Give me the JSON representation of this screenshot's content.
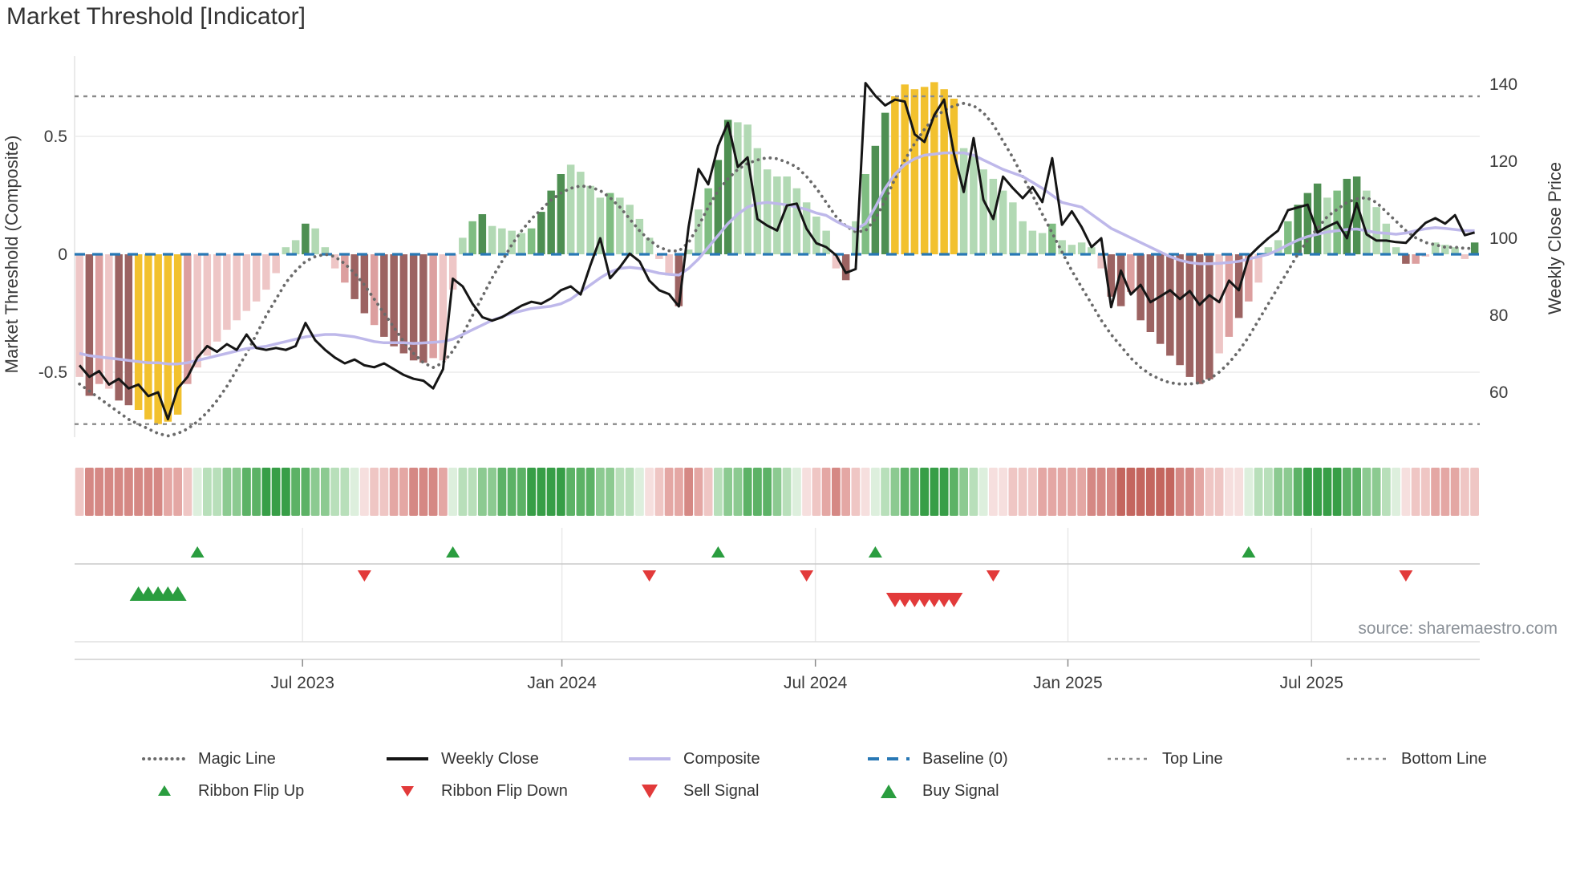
{
  "title": "Market Threshold [Indicator]",
  "source_text": "source: sharemaestro.com",
  "left_axis": {
    "title": "Market Threshold (Composite)",
    "ticks": [
      {
        "v": 0.5,
        "label": "0.5"
      },
      {
        "v": 0,
        "label": "0"
      },
      {
        "v": -0.5,
        "label": "-0.5"
      }
    ],
    "range": [
      -0.78,
      0.84
    ]
  },
  "right_axis": {
    "title": "Weekly Close Price",
    "ticks": [
      {
        "v": 140,
        "label": "140"
      },
      {
        "v": 120,
        "label": "120"
      },
      {
        "v": 100,
        "label": "100"
      },
      {
        "v": 80,
        "label": "80"
      },
      {
        "v": 60,
        "label": "60"
      }
    ],
    "range": [
      48,
      147
    ]
  },
  "x_axis": {
    "tick_labels": [
      "Jul 2023",
      "Jan 2024",
      "Jul 2024",
      "Jan 2025",
      "Jul 2025"
    ],
    "tick_weeks": [
      22.7,
      49.1,
      74.9,
      100.6,
      125.4
    ]
  },
  "legend": {
    "row1": [
      {
        "label": "Magic Line"
      },
      {
        "label": "Weekly Close"
      },
      {
        "label": "Composite"
      },
      {
        "label": "Baseline (0)"
      },
      {
        "label": "Top Line"
      },
      {
        "label": "Bottom Line"
      }
    ],
    "row2": [
      {
        "label": "Ribbon Flip Up"
      },
      {
        "label": "Ribbon Flip Down"
      },
      {
        "label": "Sell Signal"
      },
      {
        "label": "Buy Signal"
      }
    ]
  },
  "colors": {
    "bar_palette": {
      "P": "#eec6c6",
      "M": "#dc9f9f",
      "D": "#9c6362",
      "Y": "#f2c12e",
      "LG": "#b2d9b4",
      "MG": "#7fbd82",
      "DG": "#4e8f52"
    },
    "ribbon_green": [
      "#ddefdd",
      "#b8dfba",
      "#8cca91",
      "#5cb266",
      "#379e47"
    ],
    "ribbon_red": [
      "#f6dfde",
      "#efc6c4",
      "#e4a7a4",
      "#d58884",
      "#c4665f"
    ],
    "weekly_close": "#151515",
    "composite": "#beb8ea",
    "magic_line": "#6a6a6a",
    "baseline": "#2878b5",
    "threshold_lines": "#8a8a8a",
    "signal_up": "#2a9d3f",
    "signal_down": "#e23a3a"
  },
  "chart_data": {
    "type": "bar",
    "title": "Market Threshold [Indicator]",
    "ylabel_left": "Market Threshold (Composite)",
    "ylabel_right": "Weekly Close Price",
    "top_line": 0.67,
    "bottom_line": -0.72,
    "baseline": 0,
    "bars": [
      [
        -0.52,
        "P"
      ],
      [
        -0.6,
        "D"
      ],
      [
        -0.55,
        "M"
      ],
      [
        -0.57,
        "P"
      ],
      [
        -0.62,
        "D"
      ],
      [
        -0.64,
        "D"
      ],
      [
        -0.66,
        "Y"
      ],
      [
        -0.7,
        "Y"
      ],
      [
        -0.72,
        "Y"
      ],
      [
        -0.71,
        "Y"
      ],
      [
        -0.68,
        "Y"
      ],
      [
        -0.55,
        "M"
      ],
      [
        -0.48,
        "P"
      ],
      [
        -0.43,
        "P"
      ],
      [
        -0.37,
        "P"
      ],
      [
        -0.32,
        "P"
      ],
      [
        -0.28,
        "P"
      ],
      [
        -0.24,
        "P"
      ],
      [
        -0.2,
        "P"
      ],
      [
        -0.15,
        "P"
      ],
      [
        -0.08,
        "P"
      ],
      [
        0.03,
        "LG"
      ],
      [
        0.06,
        "LG"
      ],
      [
        0.13,
        "DG"
      ],
      [
        0.11,
        "LG"
      ],
      [
        0.03,
        "LG"
      ],
      [
        -0.06,
        "P"
      ],
      [
        -0.12,
        "M"
      ],
      [
        -0.19,
        "D"
      ],
      [
        -0.25,
        "D"
      ],
      [
        -0.3,
        "M"
      ],
      [
        -0.35,
        "D"
      ],
      [
        -0.39,
        "D"
      ],
      [
        -0.42,
        "D"
      ],
      [
        -0.45,
        "D"
      ],
      [
        -0.46,
        "D"
      ],
      [
        -0.44,
        "M"
      ],
      [
        -0.45,
        "P"
      ],
      [
        -0.15,
        "P"
      ],
      [
        0.07,
        "LG"
      ],
      [
        0.14,
        "MG"
      ],
      [
        0.17,
        "DG"
      ],
      [
        0.12,
        "LG"
      ],
      [
        0.11,
        "LG"
      ],
      [
        0.1,
        "LG"
      ],
      [
        0.09,
        "LG"
      ],
      [
        0.11,
        "MG"
      ],
      [
        0.18,
        "DG"
      ],
      [
        0.27,
        "DG"
      ],
      [
        0.34,
        "DG"
      ],
      [
        0.38,
        "LG"
      ],
      [
        0.35,
        "LG"
      ],
      [
        0.29,
        "LG"
      ],
      [
        0.24,
        "LG"
      ],
      [
        0.26,
        "MG"
      ],
      [
        0.24,
        "LG"
      ],
      [
        0.21,
        "LG"
      ],
      [
        0.15,
        "LG"
      ],
      [
        0.07,
        "LG"
      ],
      [
        -0.02,
        "P"
      ],
      [
        -0.09,
        "P"
      ],
      [
        -0.22,
        "D"
      ],
      [
        0.02,
        "LG"
      ],
      [
        0.19,
        "LG"
      ],
      [
        0.28,
        "MG"
      ],
      [
        0.4,
        "DG"
      ],
      [
        0.57,
        "DG"
      ],
      [
        0.56,
        "LG"
      ],
      [
        0.55,
        "LG"
      ],
      [
        0.45,
        "LG"
      ],
      [
        0.36,
        "LG"
      ],
      [
        0.33,
        "LG"
      ],
      [
        0.33,
        "LG"
      ],
      [
        0.28,
        "LG"
      ],
      [
        0.22,
        "LG"
      ],
      [
        0.16,
        "LG"
      ],
      [
        0.1,
        "LG"
      ],
      [
        -0.06,
        "P"
      ],
      [
        -0.11,
        "D"
      ],
      [
        0.14,
        "LG"
      ],
      [
        0.34,
        "MG"
      ],
      [
        0.46,
        "DG"
      ],
      [
        0.6,
        "DG"
      ],
      [
        0.67,
        "Y"
      ],
      [
        0.72,
        "Y"
      ],
      [
        0.7,
        "Y"
      ],
      [
        0.71,
        "Y"
      ],
      [
        0.73,
        "Y"
      ],
      [
        0.7,
        "Y"
      ],
      [
        0.66,
        "Y"
      ],
      [
        0.45,
        "LG"
      ],
      [
        0.42,
        "LG"
      ],
      [
        0.36,
        "LG"
      ],
      [
        0.32,
        "LG"
      ],
      [
        0.27,
        "LG"
      ],
      [
        0.22,
        "LG"
      ],
      [
        0.14,
        "LG"
      ],
      [
        0.1,
        "LG"
      ],
      [
        0.09,
        "LG"
      ],
      [
        0.13,
        "MG"
      ],
      [
        0.06,
        "LG"
      ],
      [
        0.04,
        "LG"
      ],
      [
        0.05,
        "LG"
      ],
      [
        0.03,
        "LG"
      ],
      [
        -0.06,
        "P"
      ],
      [
        -0.18,
        "D"
      ],
      [
        -0.22,
        "D"
      ],
      [
        -0.16,
        "M"
      ],
      [
        -0.28,
        "D"
      ],
      [
        -0.33,
        "D"
      ],
      [
        -0.38,
        "D"
      ],
      [
        -0.43,
        "D"
      ],
      [
        -0.47,
        "D"
      ],
      [
        -0.52,
        "D"
      ],
      [
        -0.55,
        "D"
      ],
      [
        -0.53,
        "D"
      ],
      [
        -0.42,
        "P"
      ],
      [
        -0.35,
        "M"
      ],
      [
        -0.27,
        "D"
      ],
      [
        -0.2,
        "M"
      ],
      [
        -0.12,
        "P"
      ],
      [
        0.03,
        "LG"
      ],
      [
        0.06,
        "LG"
      ],
      [
        0.14,
        "MG"
      ],
      [
        0.21,
        "DG"
      ],
      [
        0.26,
        "DG"
      ],
      [
        0.3,
        "DG"
      ],
      [
        0.24,
        "LG"
      ],
      [
        0.27,
        "MG"
      ],
      [
        0.32,
        "DG"
      ],
      [
        0.33,
        "DG"
      ],
      [
        0.27,
        "LG"
      ],
      [
        0.2,
        "LG"
      ],
      [
        0.13,
        "LG"
      ],
      [
        0.03,
        "LG"
      ],
      [
        -0.04,
        "D"
      ],
      [
        -0.04,
        "M"
      ],
      [
        -0.01,
        "P"
      ],
      [
        0.05,
        "LG"
      ],
      [
        0.04,
        "LG"
      ],
      [
        0.03,
        "LG"
      ],
      [
        -0.02,
        "P"
      ],
      [
        0.05,
        "DG"
      ]
    ],
    "weekly_close": [
      67,
      64,
      65.5,
      62,
      63.5,
      61,
      62,
      59,
      60,
      53,
      61,
      64,
      69,
      72,
      70.5,
      72.5,
      71,
      75,
      71.5,
      71,
      71.5,
      71,
      72,
      78,
      73.5,
      71,
      69,
      67.5,
      68.5,
      67,
      66.5,
      67.5,
      66,
      64.5,
      63.5,
      63,
      61,
      66,
      89.5,
      87.5,
      83,
      79.5,
      78.6,
      79.5,
      81,
      82.5,
      83.5,
      83,
      84.4,
      86.5,
      87.5,
      85.4,
      93,
      100,
      89.6,
      92.5,
      96,
      94,
      89,
      86.5,
      85.5,
      82.3,
      103,
      118,
      114,
      124,
      130,
      118.5,
      121,
      105,
      103.3,
      102,
      108.5,
      109,
      102.5,
      98.7,
      97.7,
      95.6,
      91,
      92,
      140.3,
      137,
      134.5,
      136,
      135.5,
      127,
      125,
      132,
      136,
      122,
      112,
      126,
      110,
      105,
      116,
      113,
      110.4,
      113.3,
      109.4,
      120.8,
      103.5,
      107,
      102.9,
      97.7,
      100,
      82.1,
      91.6,
      85.4,
      87.9,
      83.4,
      84.9,
      86.5,
      84.2,
      86.3,
      82.7,
      85.2,
      83.4,
      89,
      86.5,
      95.2,
      97.7,
      100,
      102,
      107.3,
      108,
      108.7,
      101.5,
      103,
      104.2,
      100,
      109.1,
      101,
      99.4,
      99.4,
      99,
      98.8,
      101.5,
      104,
      105.2,
      103.8,
      106,
      100.8,
      101.5
    ],
    "composite": [
      -0.42,
      -0.43,
      -0.435,
      -0.44,
      -0.445,
      -0.45,
      -0.455,
      -0.46,
      -0.46,
      -0.465,
      -0.465,
      -0.46,
      -0.45,
      -0.44,
      -0.43,
      -0.42,
      -0.41,
      -0.4,
      -0.395,
      -0.39,
      -0.38,
      -0.37,
      -0.36,
      -0.35,
      -0.345,
      -0.34,
      -0.34,
      -0.345,
      -0.35,
      -0.36,
      -0.37,
      -0.375,
      -0.375,
      -0.375,
      -0.378,
      -0.376,
      -0.373,
      -0.37,
      -0.36,
      -0.34,
      -0.32,
      -0.3,
      -0.28,
      -0.265,
      -0.25,
      -0.24,
      -0.23,
      -0.225,
      -0.22,
      -0.21,
      -0.19,
      -0.16,
      -0.13,
      -0.1,
      -0.075,
      -0.06,
      -0.055,
      -0.06,
      -0.07,
      -0.08,
      -0.085,
      -0.088,
      -0.06,
      -0.02,
      0.03,
      0.08,
      0.13,
      0.17,
      0.2,
      0.215,
      0.22,
      0.215,
      0.21,
      0.2,
      0.19,
      0.175,
      0.165,
      0.14,
      0.12,
      0.105,
      0.13,
      0.2,
      0.28,
      0.34,
      0.38,
      0.405,
      0.42,
      0.425,
      0.43,
      0.43,
      0.43,
      0.42,
      0.4,
      0.38,
      0.36,
      0.345,
      0.33,
      0.305,
      0.28,
      0.25,
      0.22,
      0.21,
      0.2,
      0.17,
      0.14,
      0.11,
      0.09,
      0.07,
      0.05,
      0.03,
      0.01,
      -0.01,
      -0.025,
      -0.035,
      -0.04,
      -0.04,
      -0.038,
      -0.035,
      -0.03,
      -0.02,
      -0.01,
      0.0,
      0.018,
      0.04,
      0.06,
      0.075,
      0.085,
      0.095,
      0.1,
      0.105,
      0.107,
      0.1,
      0.092,
      0.089,
      0.085,
      0.09,
      0.1,
      0.108,
      0.113,
      0.11,
      0.105,
      0.1,
      0.1
    ],
    "magic_line": [
      -0.55,
      -0.58,
      -0.61,
      -0.64,
      -0.67,
      -0.7,
      -0.72,
      -0.74,
      -0.76,
      -0.77,
      -0.76,
      -0.74,
      -0.71,
      -0.67,
      -0.62,
      -0.56,
      -0.49,
      -0.42,
      -0.34,
      -0.26,
      -0.19,
      -0.12,
      -0.07,
      -0.03,
      -0.01,
      0.0,
      -0.01,
      -0.04,
      -0.08,
      -0.13,
      -0.19,
      -0.25,
      -0.31,
      -0.37,
      -0.42,
      -0.46,
      -0.48,
      -0.46,
      -0.41,
      -0.34,
      -0.26,
      -0.18,
      -0.1,
      -0.03,
      0.04,
      0.1,
      0.15,
      0.19,
      0.23,
      0.26,
      0.28,
      0.29,
      0.285,
      0.27,
      0.24,
      0.2,
      0.15,
      0.1,
      0.06,
      0.03,
      0.015,
      0.014,
      0.05,
      0.12,
      0.2,
      0.27,
      0.32,
      0.36,
      0.385,
      0.4,
      0.41,
      0.405,
      0.39,
      0.37,
      0.33,
      0.28,
      0.22,
      0.16,
      0.12,
      0.095,
      0.1,
      0.15,
      0.23,
      0.32,
      0.4,
      0.47,
      0.53,
      0.58,
      0.61,
      0.63,
      0.64,
      0.63,
      0.6,
      0.55,
      0.48,
      0.41,
      0.33,
      0.25,
      0.17,
      0.09,
      0.01,
      -0.07,
      -0.14,
      -0.21,
      -0.28,
      -0.34,
      -0.39,
      -0.44,
      -0.48,
      -0.51,
      -0.53,
      -0.545,
      -0.55,
      -0.55,
      -0.545,
      -0.53,
      -0.5,
      -0.46,
      -0.41,
      -0.35,
      -0.28,
      -0.21,
      -0.14,
      -0.07,
      0.0,
      0.06,
      0.11,
      0.16,
      0.19,
      0.22,
      0.235,
      0.24,
      0.22,
      0.18,
      0.14,
      0.1,
      0.07,
      0.05,
      0.04,
      0.03,
      0.03,
      0.025,
      0.025
    ],
    "ribbon": [
      "r1",
      "r3",
      "r3",
      "r3",
      "r3",
      "r3",
      "r3",
      "r3",
      "r3",
      "r2",
      "r2",
      "r1",
      "g0",
      "g1",
      "g1",
      "g2",
      "g2",
      "g3",
      "g3",
      "g4",
      "g4",
      "g4",
      "g3",
      "g3",
      "g2",
      "g2",
      "g1",
      "g1",
      "g0",
      "r0",
      "r1",
      "r1",
      "r2",
      "r2",
      "r3",
      "r3",
      "r3",
      "r2",
      "g0",
      "g1",
      "g1",
      "g2",
      "g2",
      "g3",
      "g3",
      "g3",
      "g4",
      "g4",
      "g4",
      "g4",
      "g3",
      "g3",
      "g3",
      "g2",
      "g2",
      "g1",
      "g1",
      "g0",
      "r0",
      "r1",
      "r2",
      "r2",
      "r3",
      "r2",
      "r1",
      "g1",
      "g2",
      "g2",
      "g3",
      "g3",
      "g3",
      "g2",
      "g1",
      "g0",
      "r0",
      "r1",
      "r2",
      "r3",
      "r2",
      "r1",
      "r0",
      "g0",
      "g1",
      "g2",
      "g3",
      "g3",
      "g4",
      "g4",
      "g4",
      "g3",
      "g2",
      "g1",
      "g0",
      "r0",
      "r0",
      "r1",
      "r1",
      "r1",
      "r2",
      "r2",
      "r2",
      "r2",
      "r2",
      "r3",
      "r3",
      "r3",
      "r4",
      "r4",
      "r4",
      "r4",
      "r4",
      "r4",
      "r3",
      "r3",
      "r2",
      "r1",
      "r1",
      "r0",
      "r0",
      "g0",
      "g1",
      "g1",
      "g2",
      "g2",
      "g3",
      "g4",
      "g4",
      "g4",
      "g4",
      "g3",
      "g3",
      "g2",
      "g2",
      "g1",
      "g0",
      "r0",
      "r1",
      "r1",
      "r2",
      "r2",
      "r2",
      "r1",
      "r1"
    ],
    "ribbon_flip_up_weeks": [
      12,
      38,
      65,
      81,
      119
    ],
    "ribbon_flip_down_weeks": [
      29,
      58,
      74,
      93,
      135
    ],
    "buy_signal_weeks": [
      6,
      7,
      8,
      9,
      10
    ],
    "sell_signal_weeks": [
      83,
      84,
      85,
      86,
      87,
      88,
      89
    ]
  }
}
